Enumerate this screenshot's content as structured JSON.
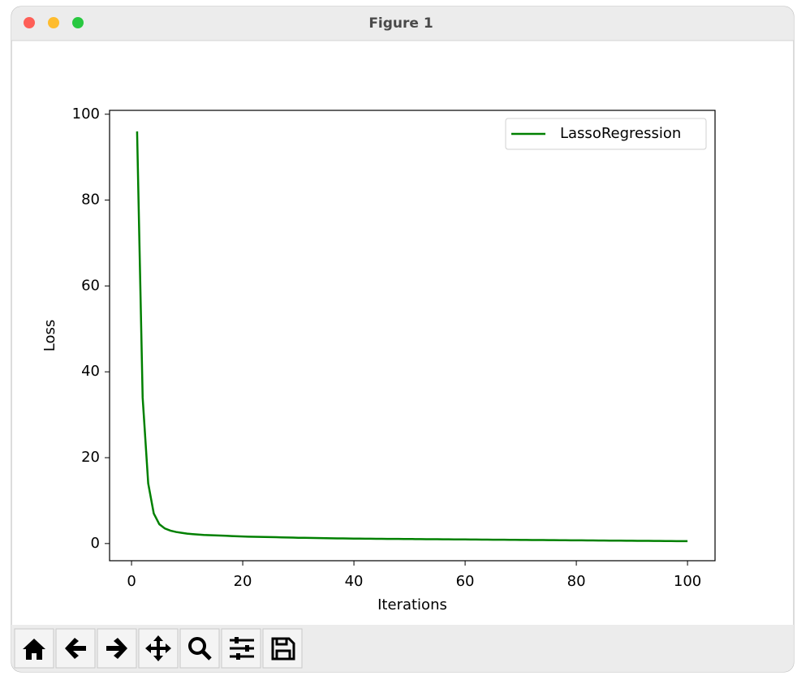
{
  "window": {
    "title": "Figure 1"
  },
  "chart_data": {
    "type": "line",
    "xlabel": "Iterations",
    "ylabel": "Loss",
    "x": [
      1,
      2,
      3,
      4,
      5,
      6,
      7,
      8,
      9,
      10,
      11,
      12,
      13,
      14,
      15,
      16,
      17,
      18,
      19,
      20,
      21,
      22,
      23,
      24,
      25,
      26,
      27,
      28,
      29,
      30,
      31,
      32,
      33,
      34,
      35,
      36,
      37,
      38,
      39,
      40,
      41,
      42,
      43,
      44,
      45,
      46,
      47,
      48,
      49,
      50,
      51,
      52,
      53,
      54,
      55,
      56,
      57,
      58,
      59,
      60,
      61,
      62,
      63,
      64,
      65,
      66,
      67,
      68,
      69,
      70,
      71,
      72,
      73,
      74,
      75,
      76,
      77,
      78,
      79,
      80,
      81,
      82,
      83,
      84,
      85,
      86,
      87,
      88,
      89,
      90,
      91,
      92,
      93,
      94,
      95,
      96,
      97,
      98,
      99,
      100
    ],
    "series": [
      {
        "name": "LassoRegression",
        "color": "#008000",
        "values": [
          96,
          34,
          14,
          7,
          4.5,
          3.5,
          3,
          2.7,
          2.5,
          2.3,
          2.2,
          2.1,
          2.0,
          1.95,
          1.9,
          1.85,
          1.8,
          1.75,
          1.7,
          1.65,
          1.6,
          1.58,
          1.55,
          1.52,
          1.5,
          1.47,
          1.44,
          1.41,
          1.38,
          1.35,
          1.33,
          1.31,
          1.29,
          1.27,
          1.25,
          1.23,
          1.21,
          1.19,
          1.17,
          1.15,
          1.14,
          1.13,
          1.12,
          1.11,
          1.1,
          1.09,
          1.08,
          1.07,
          1.06,
          1.05,
          1.04,
          1.03,
          1.02,
          1.01,
          1.0,
          0.99,
          0.98,
          0.97,
          0.96,
          0.95,
          0.94,
          0.93,
          0.92,
          0.91,
          0.9,
          0.89,
          0.88,
          0.87,
          0.86,
          0.85,
          0.84,
          0.83,
          0.82,
          0.81,
          0.8,
          0.79,
          0.78,
          0.77,
          0.76,
          0.75,
          0.74,
          0.73,
          0.72,
          0.71,
          0.7,
          0.69,
          0.68,
          0.67,
          0.66,
          0.65,
          0.64,
          0.63,
          0.62,
          0.61,
          0.6,
          0.59,
          0.58,
          0.57,
          0.56,
          0.55
        ]
      }
    ],
    "xlim": [
      -3.95,
      104.95
    ],
    "ylim": [
      -4,
      100.9
    ],
    "xticks": [
      0,
      20,
      40,
      60,
      80,
      100
    ],
    "yticks": [
      0,
      20,
      40,
      60,
      80,
      100
    ],
    "legend": "upper right",
    "grid": false
  }
}
